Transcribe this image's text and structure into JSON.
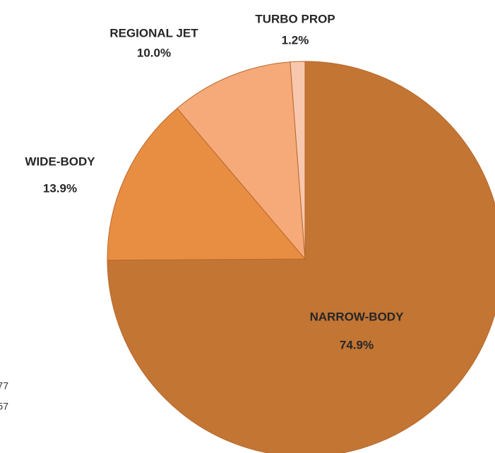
{
  "chart_data": {
    "type": "pie",
    "categories": [
      "NARROW-BODY",
      "WIDE-BODY",
      "REGIONAL JET",
      "TURBO PROP"
    ],
    "values": [
      74.9,
      13.9,
      10.0,
      1.2
    ],
    "value_labels": [
      "74.9%",
      "13.9%",
      "10.0%",
      "1.2%"
    ],
    "colors": [
      "#c37534",
      "#e88e43",
      "#f6aa79",
      "#f8c8ae"
    ],
    "annotations": [
      "77",
      "57"
    ]
  }
}
